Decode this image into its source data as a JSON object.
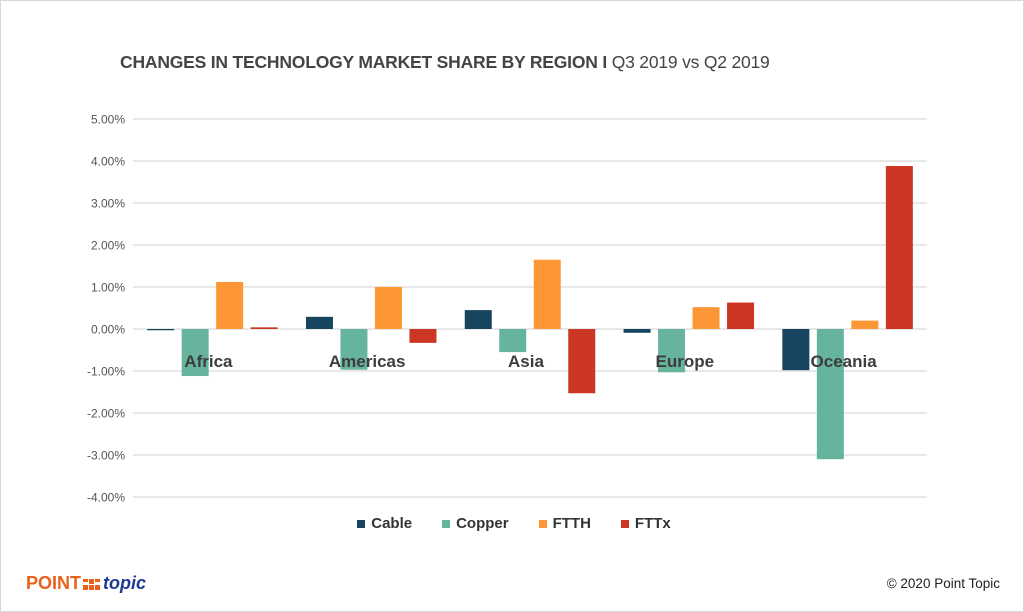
{
  "title": {
    "bold": "CHANGES IN TECHNOLOGY MARKET SHARE BY REGION I",
    "normal": "Q3 2019 vs Q2 2019"
  },
  "chart_data": {
    "type": "bar",
    "title": "CHANGES IN TECHNOLOGY MARKET SHARE BY REGION I Q3 2019 vs Q2 2019",
    "xlabel": "",
    "ylabel": "",
    "categories": [
      "Africa",
      "Americas",
      "Asia",
      "Europe",
      "Oceania"
    ],
    "series": [
      {
        "name": "Cable",
        "color": "#17445e",
        "values": [
          -0.03,
          0.29,
          0.45,
          -0.09,
          -0.98
        ]
      },
      {
        "name": "Copper",
        "color": "#66b39e",
        "values": [
          -1.12,
          -0.97,
          -0.55,
          -1.03,
          -3.1
        ]
      },
      {
        "name": "FTTH",
        "color": "#fd9634",
        "values": [
          1.12,
          1.0,
          1.65,
          0.52,
          0.2
        ]
      },
      {
        "name": "FTTx",
        "color": "#cc3624",
        "values": [
          0.04,
          -0.33,
          -1.53,
          0.63,
          3.88
        ]
      }
    ],
    "ylim": [
      -4,
      5
    ],
    "yticks": [
      5,
      4,
      3,
      2,
      1,
      0,
      -1,
      -2,
      -3,
      -4
    ],
    "ytick_labels": [
      "5.00%",
      "4.00%",
      "3.00%",
      "2.00%",
      "1.00%",
      "0.00%",
      "-1.00%",
      "-2.00%",
      "-3.00%",
      "-4.00%"
    ],
    "unit": "%",
    "grid": true,
    "legend_position": "bottom"
  },
  "legend": [
    {
      "label": "Cable",
      "color": "#17445e"
    },
    {
      "label": "Copper",
      "color": "#66b39e"
    },
    {
      "label": "FTTH",
      "color": "#fd9634"
    },
    {
      "label": "FTTx",
      "color": "#cc3624"
    }
  ],
  "footer": {
    "logo_point": "POINT",
    "logo_topic": "topic",
    "copyright": "© 2020 Point Topic"
  }
}
